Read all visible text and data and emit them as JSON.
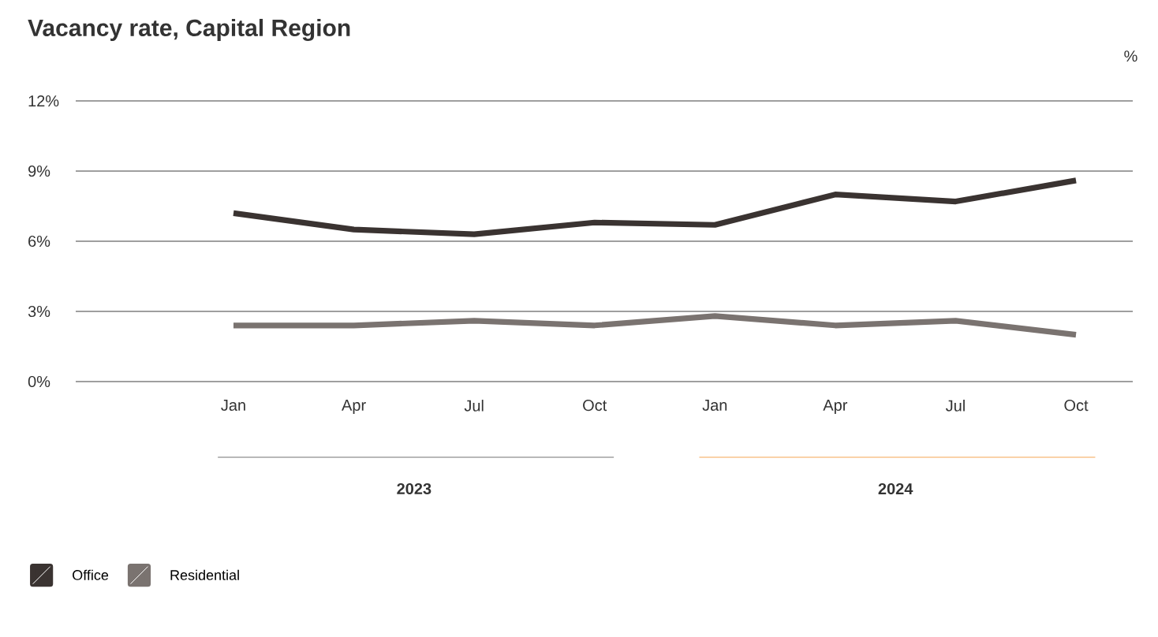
{
  "chart_data": {
    "type": "line",
    "title": "Vacancy rate, Capital Region",
    "ylabel": "%",
    "categories": [
      "Jan",
      "Apr",
      "Jul",
      "Oct",
      "Jan",
      "Apr",
      "Jul",
      "Oct"
    ],
    "series": [
      {
        "name": "Office",
        "color": "#3a3331",
        "values": [
          7.2,
          6.5,
          6.3,
          6.8,
          6.7,
          8.0,
          7.7,
          8.6
        ]
      },
      {
        "name": "Residential",
        "color": "#7a7370",
        "values": [
          2.4,
          2.4,
          2.6,
          2.4,
          2.8,
          2.4,
          2.6,
          2.0
        ]
      }
    ],
    "ylim": [
      0,
      12
    ],
    "yticks": [
      {
        "value": 0,
        "label": "0%"
      },
      {
        "value": 3,
        "label": "3%"
      },
      {
        "value": 6,
        "label": "6%"
      },
      {
        "value": 9,
        "label": "9%"
      },
      {
        "value": 12,
        "label": "12%"
      }
    ],
    "grid": "y",
    "legend": "bottom left",
    "marker": "none",
    "line_style": "solid",
    "annotations": [
      "2023",
      "2024"
    ]
  }
}
